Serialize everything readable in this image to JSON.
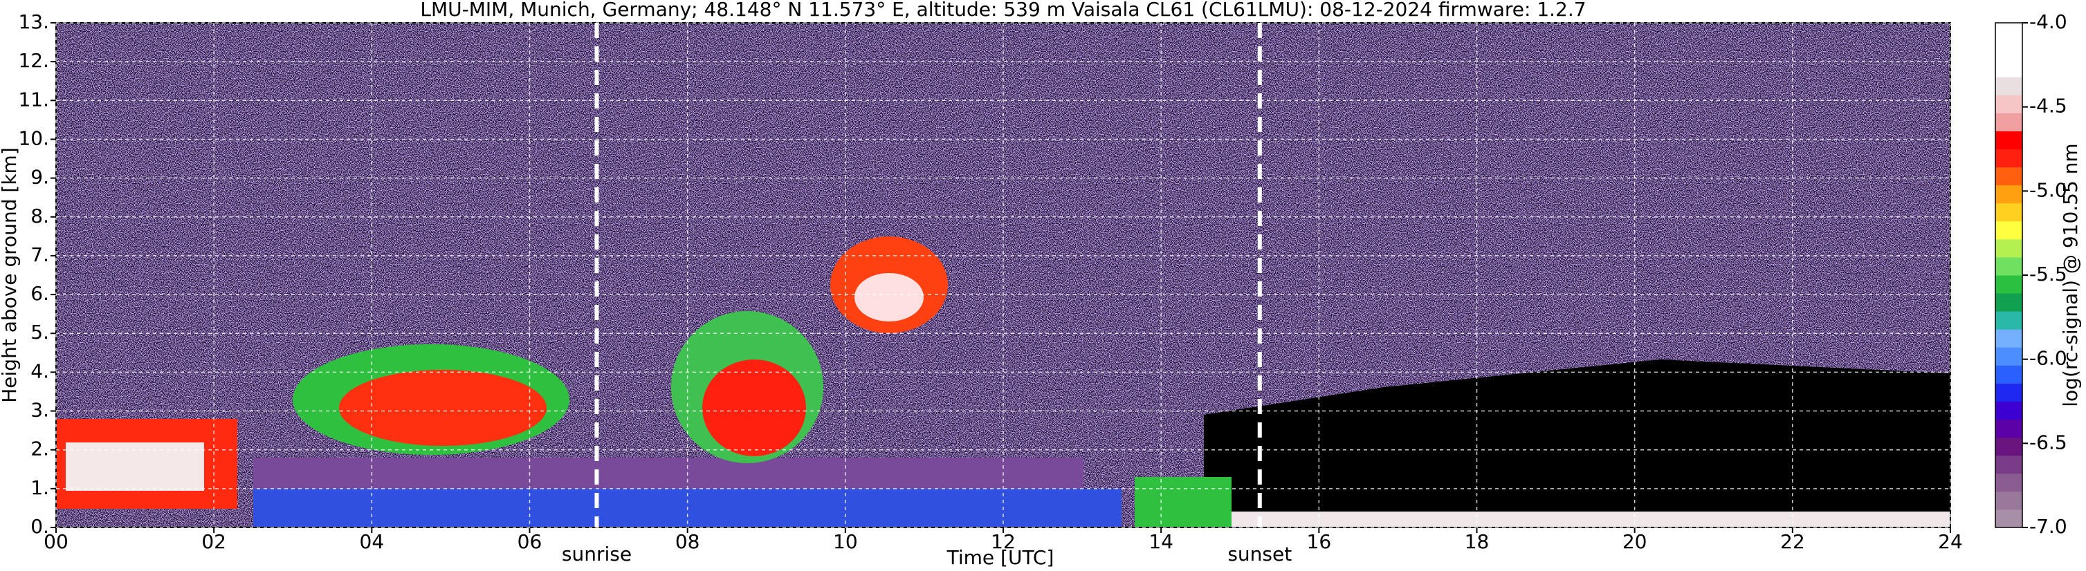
{
  "chart_data": {
    "type": "heatmap",
    "title": "LMU-MIM, Munich, Germany; 48.148° N 11.573° E, altitude: 539 m    Vaisala CL61 (CL61LMU): 08-12-2024    firmware: 1.2.7",
    "xlabel": "Time [UTC]",
    "ylabel": "Height above ground [km]",
    "xlim": [
      0,
      24
    ],
    "xticks": [
      {
        "value": 0,
        "label": "00"
      },
      {
        "value": 2,
        "label": "02"
      },
      {
        "value": 4,
        "label": "04"
      },
      {
        "value": 6,
        "label": "06"
      },
      {
        "value": 8,
        "label": "08"
      },
      {
        "value": 10,
        "label": "10"
      },
      {
        "value": 12,
        "label": "12"
      },
      {
        "value": 14,
        "label": "14"
      },
      {
        "value": 16,
        "label": "16"
      },
      {
        "value": 18,
        "label": "18"
      },
      {
        "value": 20,
        "label": "20"
      },
      {
        "value": 22,
        "label": "22"
      },
      {
        "value": 24,
        "label": "24"
      }
    ],
    "ylim": [
      0,
      13
    ],
    "yticks": [
      {
        "value": 0,
        "label": "0."
      },
      {
        "value": 1,
        "label": "1."
      },
      {
        "value": 2,
        "label": "2."
      },
      {
        "value": 3,
        "label": "3."
      },
      {
        "value": 4,
        "label": "4."
      },
      {
        "value": 5,
        "label": "5."
      },
      {
        "value": 6,
        "label": "6."
      },
      {
        "value": 7,
        "label": "7."
      },
      {
        "value": 8,
        "label": "8."
      },
      {
        "value": 9,
        "label": "9."
      },
      {
        "value": 10,
        "label": "10."
      },
      {
        "value": 11,
        "label": "11."
      },
      {
        "value": 12,
        "label": "12."
      },
      {
        "value": 13,
        "label": "13."
      }
    ],
    "grid": true,
    "annotations": [
      {
        "x": 6.85,
        "label": "sunrise"
      },
      {
        "x": 15.25,
        "label": "sunset"
      }
    ],
    "colorbar": {
      "label": "log(rc-signal) @ 910.55 nm",
      "clim": [
        -7,
        -4
      ],
      "ticks": [
        {
          "value": -7,
          "label": "-7.0"
        },
        {
          "value": -6.5,
          "label": "-6.5"
        },
        {
          "value": -6,
          "label": "-6.0"
        },
        {
          "value": -5.5,
          "label": "-5.5"
        },
        {
          "value": -5,
          "label": "-5.0"
        },
        {
          "value": -4.5,
          "label": "-4.5"
        },
        {
          "value": -4,
          "label": "-4.0"
        }
      ],
      "colors": [
        "#a88fa8",
        "#9a789c",
        "#8a5c92",
        "#7a3c88",
        "#6a1480",
        "#5c00a8",
        "#3c00d0",
        "#1e28f0",
        "#2a60ff",
        "#4c8eff",
        "#74b0ff",
        "#2ab8a8",
        "#10a050",
        "#2cc040",
        "#70e060",
        "#b4f050",
        "#ffff40",
        "#ffd020",
        "#ffa010",
        "#ff6010",
        "#ff2010",
        "#ff0000",
        "#f0a0a0",
        "#f6c6c6",
        "#e8e0e0",
        "#ffffff",
        "#ffffff",
        "#ffffff"
      ]
    }
  }
}
